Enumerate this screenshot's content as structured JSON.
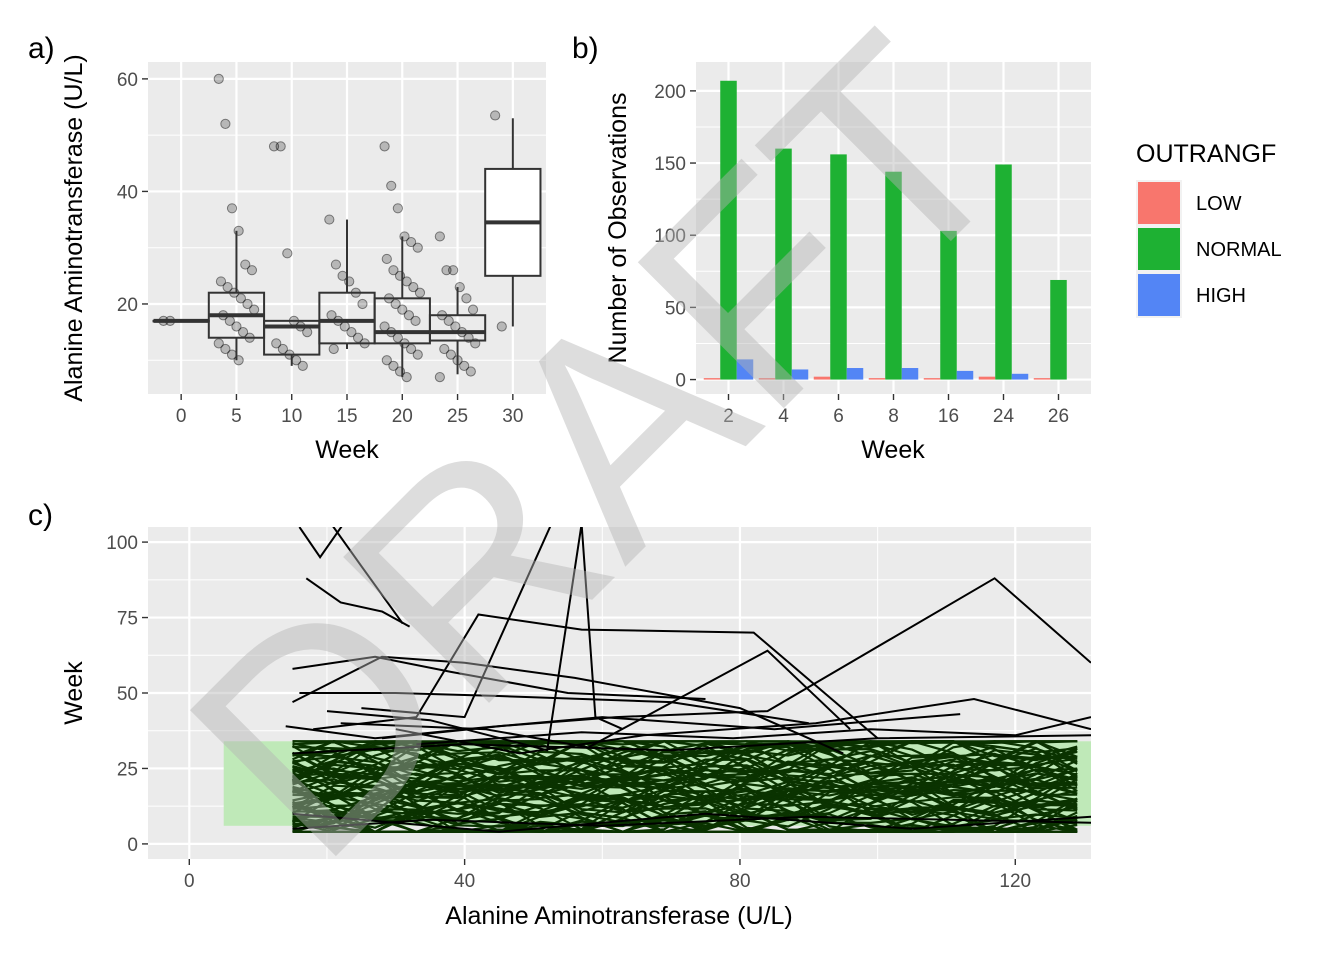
{
  "watermark": "DRAFT",
  "chart_data": [
    {
      "panel": "a)",
      "type": "box",
      "xlabel": "Week",
      "ylabel": "Alanine Aminotransferase (U/L)",
      "xlim": [
        -3,
        33
      ],
      "ylim": [
        4,
        63
      ],
      "xticks": [
        0,
        5,
        10,
        15,
        20,
        25,
        30
      ],
      "yticks": [
        20,
        40,
        60
      ],
      "boxes": [
        {
          "x": 0,
          "q1": 17,
          "median": 17,
          "q3": 17,
          "lower": 17,
          "upper": 17
        },
        {
          "x": 5,
          "q1": 14,
          "median": 18,
          "q3": 22,
          "lower": 10,
          "upper": 33
        },
        {
          "x": 10,
          "q1": 11,
          "median": 16,
          "q3": 17,
          "lower": 9,
          "upper": 17
        },
        {
          "x": 15,
          "q1": 13,
          "median": 17,
          "q3": 22,
          "lower": 12,
          "upper": 35
        },
        {
          "x": 20,
          "q1": 13,
          "median": 15,
          "q3": 21,
          "lower": 7,
          "upper": 32
        },
        {
          "x": 25,
          "q1": 13.5,
          "median": 15,
          "q3": 18,
          "lower": 7.5,
          "upper": 23
        },
        {
          "x": 30,
          "q1": 25,
          "median": 34.5,
          "q3": 44,
          "lower": 16,
          "upper": 53
        }
      ],
      "points": [
        {
          "x": 0,
          "ys": [
            17,
            17
          ]
        },
        {
          "x": 5,
          "ys": [
            60,
            52,
            37,
            33,
            27,
            26,
            24,
            23,
            22,
            21,
            20,
            19,
            18,
            17,
            16,
            15,
            14,
            13,
            12,
            11,
            10
          ]
        },
        {
          "x": 10,
          "ys": [
            48,
            48,
            29,
            17,
            16,
            15,
            13,
            12,
            11,
            10,
            9
          ]
        },
        {
          "x": 15,
          "ys": [
            35,
            27,
            25,
            24,
            22,
            20,
            18,
            17,
            16,
            15,
            14,
            13,
            12
          ]
        },
        {
          "x": 20,
          "ys": [
            48,
            41,
            37,
            32,
            31,
            30,
            28,
            26,
            25,
            24,
            23,
            22,
            21,
            20,
            19,
            18,
            17,
            16,
            15,
            14,
            13,
            12,
            11,
            10,
            9,
            8,
            7
          ]
        },
        {
          "x": 25,
          "ys": [
            32,
            26,
            26,
            23,
            21,
            19,
            18,
            17,
            16,
            15,
            14,
            13,
            12,
            11,
            10,
            9,
            8,
            7
          ]
        },
        {
          "x": 30,
          "ys": [
            53.5,
            16
          ]
        }
      ]
    },
    {
      "panel": "b)",
      "type": "bar",
      "xlabel": "Week",
      "ylabel": "Number of Observations",
      "ylim": [
        -10,
        220
      ],
      "yticks": [
        0,
        50,
        100,
        150,
        200
      ],
      "categories": [
        "2",
        "4",
        "6",
        "8",
        "16",
        "24",
        "26"
      ],
      "series": [
        {
          "name": "LOW",
          "color": "#f8766d",
          "values": [
            1,
            1,
            2,
            1,
            1,
            2,
            1
          ]
        },
        {
          "name": "NORMAL",
          "color": "#1eb133",
          "values": [
            207,
            160,
            156,
            144,
            103,
            149,
            69
          ]
        },
        {
          "name": "HIGH",
          "color": "#5385f5",
          "values": [
            14,
            7,
            8,
            8,
            6,
            4,
            0
          ]
        }
      ],
      "legend": {
        "title": "OUTRANGF",
        "position": "right"
      }
    },
    {
      "panel": "c)",
      "type": "line",
      "xlabel": "Alanine Aminotransferase (U/L)",
      "ylabel": "Week",
      "xlim": [
        -6,
        131
      ],
      "ylim": [
        -5,
        105
      ],
      "xticks": [
        0,
        40,
        80,
        120
      ],
      "yticks": [
        0,
        25,
        50,
        75,
        100
      ],
      "normal_range_band": {
        "x": [
          5,
          131
        ],
        "y": [
          6,
          34
        ],
        "color": "#bfe9b8"
      },
      "line_color": "#000000",
      "dense_band_color": "#0a3300",
      "dense_band": {
        "x": [
          15,
          131
        ],
        "y": [
          4,
          34
        ]
      },
      "lines": [
        [
          [
            16,
            105
          ],
          [
            19,
            95
          ],
          [
            23,
            108
          ]
        ],
        [
          [
            17,
            88
          ],
          [
            22,
            80
          ],
          [
            28,
            77
          ],
          [
            32,
            72
          ]
        ],
        [
          [
            20,
            108
          ],
          [
            25,
            92
          ],
          [
            31,
            73
          ]
        ],
        [
          [
            15,
            47
          ],
          [
            28,
            62
          ],
          [
            40,
            60
          ],
          [
            56,
            55
          ],
          [
            80,
            45
          ],
          [
            95,
            30
          ]
        ],
        [
          [
            15,
            58
          ],
          [
            27,
            62
          ],
          [
            38,
            57
          ],
          [
            55,
            50
          ],
          [
            75,
            48
          ]
        ],
        [
          [
            16,
            50
          ],
          [
            30,
            50
          ],
          [
            45,
            49
          ],
          [
            70,
            47
          ],
          [
            90,
            40
          ]
        ],
        [
          [
            18,
            38
          ],
          [
            33,
            42
          ],
          [
            42,
            76
          ],
          [
            57,
            71
          ],
          [
            82,
            70
          ],
          [
            100,
            35
          ]
        ],
        [
          [
            20,
            44
          ],
          [
            35,
            41
          ],
          [
            52,
            31
          ],
          [
            57,
            106
          ],
          [
            59,
            42
          ],
          [
            63,
            38
          ]
        ],
        [
          [
            22,
            40
          ],
          [
            43,
            38
          ],
          [
            58,
            32
          ],
          [
            84,
            64
          ],
          [
            96,
            38
          ]
        ],
        [
          [
            25,
            45
          ],
          [
            40,
            42
          ],
          [
            53,
            108
          ]
        ],
        [
          [
            28,
            35
          ],
          [
            45,
            39
          ],
          [
            62,
            42
          ],
          [
            84,
            44
          ],
          [
            117,
            88
          ],
          [
            131,
            60
          ]
        ],
        [
          [
            30,
            38
          ],
          [
            48,
            30
          ],
          [
            66,
            36
          ],
          [
            91,
            40
          ],
          [
            114,
            48
          ],
          [
            131,
            38
          ]
        ],
        [
          [
            14,
            39
          ],
          [
            27,
            35
          ],
          [
            40,
            38
          ],
          [
            60,
            42
          ],
          [
            85,
            38
          ],
          [
            112,
            43
          ]
        ],
        [
          [
            33,
            33
          ],
          [
            57,
            37
          ],
          [
            79,
            35
          ],
          [
            99,
            38
          ],
          [
            120,
            36
          ],
          [
            131,
            42
          ]
        ],
        [
          [
            15,
            30
          ],
          [
            40,
            33
          ],
          [
            70,
            31
          ],
          [
            100,
            35
          ],
          [
            131,
            36
          ]
        ],
        [
          [
            15,
            5
          ],
          [
            35,
            8
          ],
          [
            60,
            6
          ],
          [
            90,
            9
          ],
          [
            131,
            7
          ]
        ],
        [
          [
            15,
            10
          ],
          [
            45,
            4
          ],
          [
            75,
            10
          ],
          [
            105,
            5
          ],
          [
            131,
            9
          ]
        ]
      ]
    }
  ]
}
